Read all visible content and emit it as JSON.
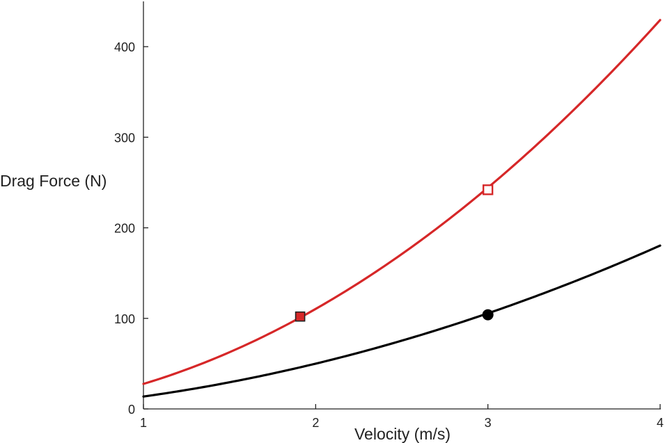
{
  "chart_data": {
    "type": "line",
    "title": "",
    "xlabel": "Velocity (m/s)",
    "ylabel": "Drag Force (N)",
    "xlim": [
      1,
      4
    ],
    "ylim": [
      0,
      450
    ],
    "xticks": [
      1,
      2,
      3,
      4
    ],
    "yticks": [
      0,
      100,
      200,
      300,
      400
    ],
    "grid": false,
    "legend": "none",
    "series": [
      {
        "color": "#d62728",
        "curve": "quadratic",
        "x": [
          1,
          1.5,
          2,
          2.5,
          3,
          3.5,
          4
        ],
        "y": [
          29,
          59,
          112,
          174,
          242,
          330,
          430
        ]
      },
      {
        "color": "#000000",
        "curve": "quadratic",
        "x": [
          1,
          1.5,
          2,
          2.5,
          3,
          3.5,
          4
        ],
        "y": [
          14,
          29,
          50,
          75,
          106,
          141,
          180
        ]
      }
    ],
    "markers": [
      {
        "shape": "filled-square",
        "color": "#d62728",
        "x": 1.91,
        "y": 102
      },
      {
        "shape": "open-square",
        "color": "#d62728",
        "x": 3.0,
        "y": 242
      },
      {
        "shape": "filled-circle",
        "color": "#000000",
        "x": 3.0,
        "y": 104
      }
    ]
  }
}
